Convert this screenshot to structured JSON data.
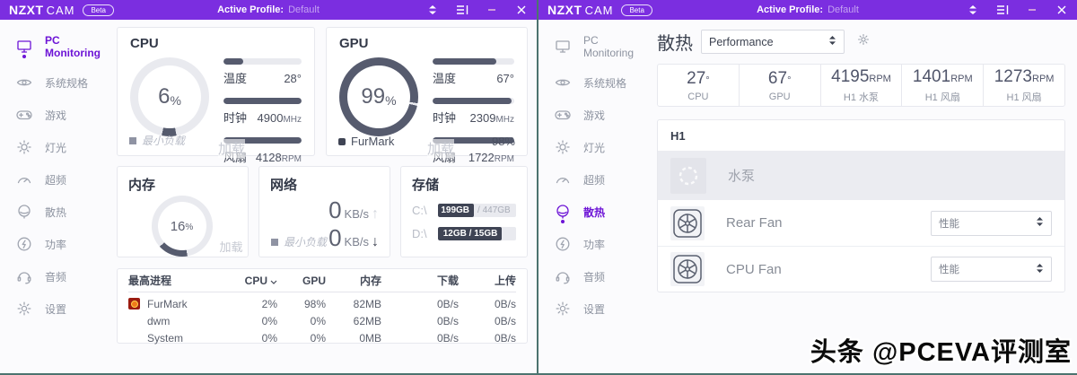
{
  "titlebar": {
    "brand": "NZXT",
    "product": "CAM",
    "beta": "Beta",
    "profile_label": "Active Profile:",
    "profile_value": "Default"
  },
  "sidebar": {
    "items": [
      {
        "label": "PC Monitoring"
      },
      {
        "label": "系统规格"
      },
      {
        "label": "游戏"
      },
      {
        "label": "灯光"
      },
      {
        "label": "超频"
      },
      {
        "label": "散热"
      },
      {
        "label": "功率"
      },
      {
        "label": "音频"
      },
      {
        "label": "设置"
      }
    ]
  },
  "monitoring": {
    "cpu": {
      "title": "CPU",
      "donut_pct": 6,
      "load_value": "6",
      "load_unit": "%",
      "load_label": "加载",
      "temp_label": "温度",
      "temp_value": "28°",
      "temp_fill": 25,
      "clock_label": "时钟",
      "clock_value": "4900",
      "clock_unit": "MHz",
      "clock_fill": 100,
      "fan_label": "风扇",
      "fan_value": "4128",
      "fan_unit": "RPM",
      "fan_fill": 100,
      "footer": "最小负载"
    },
    "gpu": {
      "title": "GPU",
      "donut_pct": 99,
      "load_value": "99",
      "load_unit": "%",
      "load_label": "加载",
      "temp_label": "温度",
      "temp_value": "67°",
      "temp_fill": 78,
      "clock_label": "时钟",
      "clock_value": "2309",
      "clock_unit": "MHz",
      "clock_fill": 97,
      "fan_label": "风扇",
      "fan_value": "1722",
      "fan_unit": "RPM",
      "fan_fill": 100,
      "footer_app": "FurMark",
      "footer_value": "98%"
    },
    "memory": {
      "title": "内存",
      "donut_pct": 16,
      "load_value": "16",
      "load_unit": "%",
      "load_label": "加载"
    },
    "network": {
      "title": "网络",
      "up_value": "0",
      "up_unit": "KB/s",
      "down_value": "0",
      "down_unit": "KB/s",
      "footer": "最小负载"
    },
    "storage": {
      "title": "存储",
      "drives": [
        {
          "name": "C:\\",
          "used": "199GB",
          "rest": "/ 447GB",
          "fill": 46
        },
        {
          "name": "D:\\",
          "used": "12GB / 15GB",
          "rest": "",
          "fill": 82
        }
      ]
    },
    "table": {
      "headers": {
        "process": "最高进程",
        "cpu": "CPU",
        "gpu": "GPU",
        "mem": "内存",
        "down": "下载",
        "up": "上传"
      },
      "rows": [
        {
          "name": "FurMark",
          "cpu": "2%",
          "gpu": "98%",
          "mem": "82MB",
          "down": "0B/s",
          "up": "0B/s"
        },
        {
          "name": "dwm",
          "cpu": "0%",
          "gpu": "0%",
          "mem": "62MB",
          "down": "0B/s",
          "up": "0B/s"
        },
        {
          "name": "System",
          "cpu": "0%",
          "gpu": "0%",
          "mem": "0MB",
          "down": "0B/s",
          "up": "0B/s"
        }
      ]
    }
  },
  "cooling": {
    "title": "散热",
    "profile_value": "Performance",
    "stats": [
      {
        "value": "27",
        "unit": "°",
        "label": "CPU"
      },
      {
        "value": "67",
        "unit": "°",
        "label": "GPU"
      },
      {
        "value": "4195",
        "unit": "RPM",
        "label": "H1 水泵"
      },
      {
        "value": "1401",
        "unit": "RPM",
        "label": "H1 风扇"
      },
      {
        "value": "1273",
        "unit": "RPM",
        "label": "H1 风扇"
      }
    ],
    "group_title": "H1",
    "pump_label": "水泵",
    "fans": [
      {
        "name": "Rear Fan",
        "mode": "性能"
      },
      {
        "name": "CPU Fan",
        "mode": "性能"
      }
    ]
  },
  "watermark": "头条 @PCEVA评测室",
  "colors": {
    "titlebar_purple": "#7b2ee0",
    "accent_purple": "#6d14d6",
    "gauge_dark": "#565b6e",
    "gauge_track": "#e9eaef",
    "furmark_red": "#9b1b10"
  }
}
